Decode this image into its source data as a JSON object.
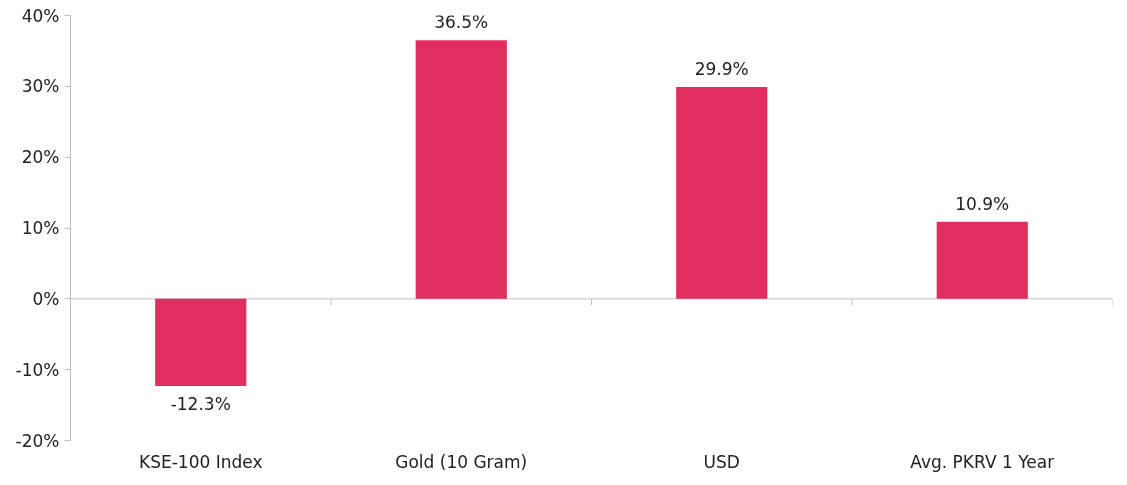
{
  "chart_data": {
    "type": "bar",
    "categories": [
      "KSE-100 Index",
      "Gold (10 Gram)",
      "USD",
      "Avg. PKRV 1 Year"
    ],
    "values": [
      -12.3,
      36.5,
      29.9,
      10.9
    ],
    "yticks": [
      {
        "value": -20,
        "label": "-20%"
      },
      {
        "value": -10,
        "label": "-10%"
      },
      {
        "value": 0,
        "label": "0%"
      },
      {
        "value": 10,
        "label": "10%"
      },
      {
        "value": 20,
        "label": "20%"
      },
      {
        "value": 30,
        "label": "30%"
      },
      {
        "value": 40,
        "label": "40%"
      }
    ],
    "value_labels": [
      "-12.3%",
      "36.5%",
      "29.9%",
      "10.9%"
    ],
    "color": "#e02f5f",
    "ylim": [
      -20,
      40
    ]
  }
}
